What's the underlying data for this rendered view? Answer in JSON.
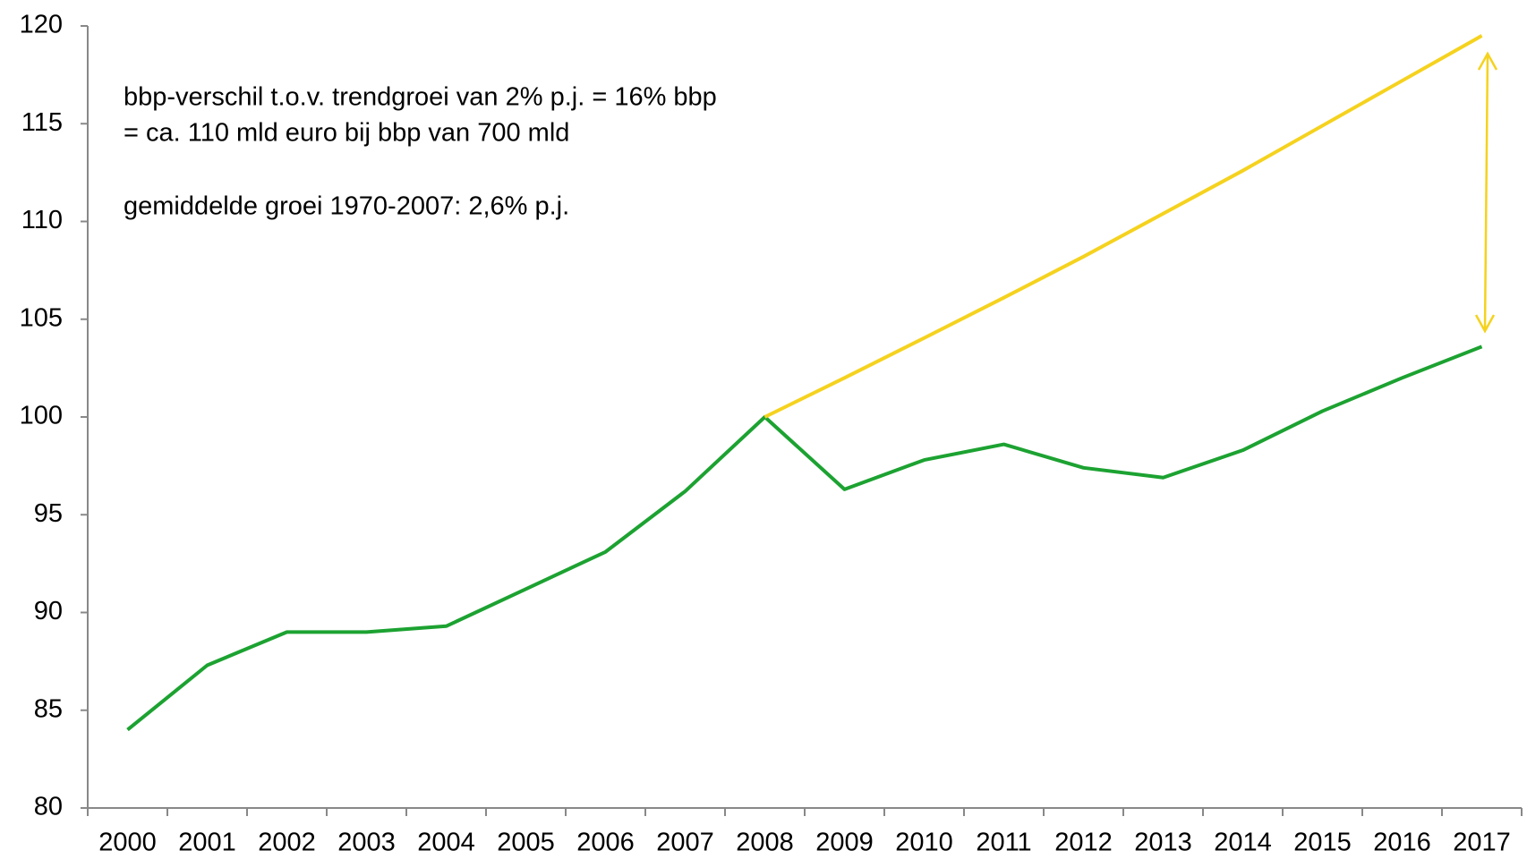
{
  "chart_data": {
    "type": "line",
    "categories": [
      "2000",
      "2001",
      "2002",
      "2003",
      "2004",
      "2005",
      "2006",
      "2007",
      "2008",
      "2009",
      "2010",
      "2011",
      "2012",
      "2013",
      "2014",
      "2015",
      "2016",
      "2017"
    ],
    "series": [
      {
        "color": "#1ca231",
        "values": [
          84,
          87.3,
          89,
          89,
          89.3,
          91.2,
          93.1,
          96.2,
          100,
          96.3,
          97.8,
          98.6,
          97.4,
          96.9,
          98.3,
          100.3,
          102,
          103.6
        ]
      },
      {
        "color": "#f5d21e",
        "values": [
          null,
          null,
          null,
          null,
          null,
          null,
          null,
          null,
          100,
          102,
          104.04,
          106.1,
          108.2,
          110.4,
          112.6,
          114.9,
          117.2,
          119.5
        ]
      }
    ],
    "ylim": [
      80,
      120
    ],
    "yticks": [
      80,
      85,
      90,
      95,
      100,
      105,
      110,
      115,
      120
    ],
    "annotations": [
      "bbp-verschil t.o.v. trendgroei van 2% p.j. = 16% bbp",
      "= ca. 110 mld euro bij bbp van 700 mld",
      "gemiddelde groei 1970-2007: 2,6% p.j."
    ]
  }
}
